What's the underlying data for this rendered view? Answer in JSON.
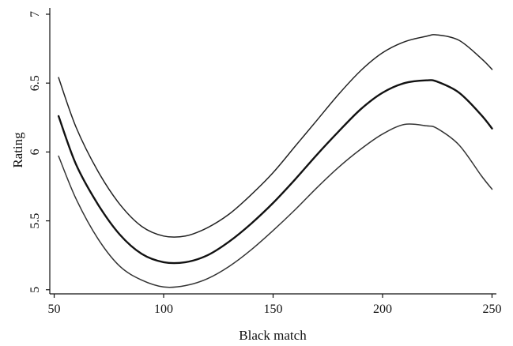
{
  "chart_data": {
    "type": "line",
    "xlabel": "Black match",
    "ylabel": "Rating",
    "xlim": [
      48,
      252
    ],
    "ylim": [
      4.97,
      7.0
    ],
    "xticks": [
      50,
      100,
      150,
      200,
      250
    ],
    "yticks": [
      5,
      5.5,
      6,
      6.5,
      7
    ],
    "ytick_labels": [
      "5",
      "5.5",
      "6",
      "6.5",
      "7"
    ],
    "grid": false,
    "series": [
      {
        "role": "upper-band",
        "color": "#222222",
        "x": [
          52,
          60,
          70,
          80,
          90,
          100,
          110,
          120,
          130,
          140,
          150,
          160,
          170,
          180,
          190,
          200,
          210,
          220,
          225,
          235,
          245,
          250
        ],
        "y": [
          6.54,
          6.18,
          5.86,
          5.62,
          5.46,
          5.39,
          5.39,
          5.45,
          5.55,
          5.69,
          5.85,
          6.04,
          6.23,
          6.42,
          6.59,
          6.72,
          6.8,
          6.84,
          6.85,
          6.81,
          6.68,
          6.6
        ]
      },
      {
        "role": "estimate",
        "color": "#111111",
        "x": [
          52,
          60,
          70,
          80,
          90,
          100,
          110,
          120,
          130,
          140,
          150,
          160,
          170,
          180,
          190,
          200,
          210,
          220,
          225,
          235,
          245,
          250
        ],
        "y": [
          6.26,
          5.91,
          5.62,
          5.4,
          5.26,
          5.2,
          5.2,
          5.25,
          5.35,
          5.48,
          5.63,
          5.8,
          5.98,
          6.15,
          6.31,
          6.43,
          6.5,
          6.52,
          6.51,
          6.43,
          6.27,
          6.17
        ]
      },
      {
        "role": "lower-band",
        "color": "#333333",
        "x": [
          52,
          60,
          70,
          80,
          90,
          100,
          110,
          120,
          130,
          140,
          150,
          160,
          170,
          180,
          190,
          200,
          210,
          220,
          225,
          235,
          245,
          250
        ],
        "y": [
          5.97,
          5.66,
          5.37,
          5.17,
          5.07,
          5.02,
          5.03,
          5.08,
          5.17,
          5.29,
          5.43,
          5.58,
          5.74,
          5.89,
          6.02,
          6.13,
          6.2,
          6.19,
          6.17,
          6.05,
          5.83,
          5.73
        ]
      }
    ]
  }
}
